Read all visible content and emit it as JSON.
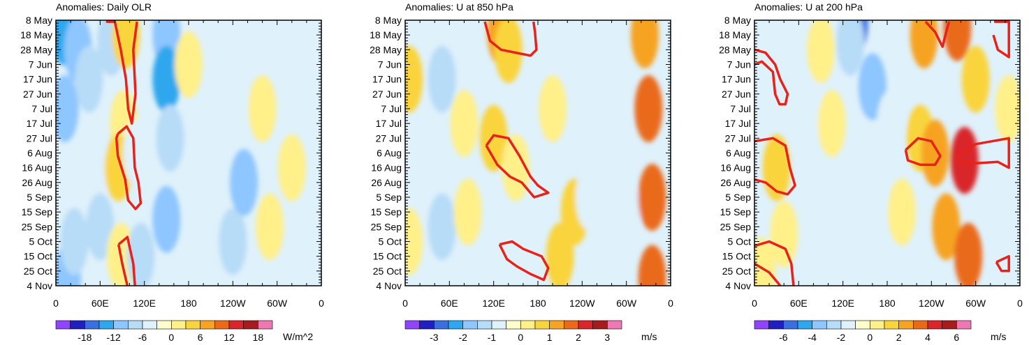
{
  "chart_data": [
    {
      "type": "heatmap",
      "title": "Anomalies: Daily OLR",
      "y_ticks": [
        "8 May",
        "18 May",
        "28 May",
        "7 Jun",
        "17 Jun",
        "27 Jun",
        "7 Jul",
        "17 Jul",
        "27 Jul",
        "6 Aug",
        "16 Aug",
        "26 Aug",
        "5 Sep",
        "15 Sep",
        "25 Sep",
        "5 Oct",
        "15 Oct",
        "25 Oct",
        "4 Nov"
      ],
      "x_ticks": [
        "0",
        "60E",
        "120E",
        "180",
        "120W",
        "60W",
        "0"
      ],
      "colorbar": {
        "unit": "W/m^2",
        "levels": [
          -21,
          -18,
          -15,
          -12,
          -9,
          -6,
          -3,
          0,
          3,
          6,
          9,
          12,
          15,
          18,
          21
        ],
        "labels": [
          {
            "text": "-18",
            "value": -18
          },
          {
            "text": "-12",
            "value": -12
          },
          {
            "text": "-6",
            "value": -6
          },
          {
            "text": "0",
            "value": 0
          },
          {
            "text": "6",
            "value": 6
          },
          {
            "text": "12",
            "value": 12
          },
          {
            "text": "18",
            "value": 18
          }
        ]
      },
      "patches": [
        {
          "lon": 12,
          "day": 8,
          "v": -12
        },
        {
          "lon": 12,
          "day": 60,
          "v": -9
        },
        {
          "lon": 15,
          "day": 175,
          "v": -9
        },
        {
          "lon": 30,
          "day": 20,
          "v": -9
        },
        {
          "lon": 30,
          "day": 120,
          "v": -3
        },
        {
          "lon": 45,
          "day": 40,
          "v": -6
        },
        {
          "lon": 55,
          "day": 100,
          "v": -3
        },
        {
          "lon": 60,
          "day": 140,
          "v": -6
        },
        {
          "lon": 75,
          "day": 15,
          "v": -6
        },
        {
          "lon": 95,
          "day": 10,
          "v": 6
        },
        {
          "lon": 92,
          "day": 70,
          "v": 3
        },
        {
          "lon": 85,
          "day": 100,
          "v": 6
        },
        {
          "lon": 88,
          "day": 160,
          "v": 3
        },
        {
          "lon": 110,
          "day": 90,
          "v": -3
        },
        {
          "lon": 115,
          "day": 160,
          "v": -6
        },
        {
          "lon": 150,
          "day": 10,
          "v": -9
        },
        {
          "lon": 150,
          "day": 40,
          "v": -12
        },
        {
          "lon": 155,
          "day": 80,
          "v": -6
        },
        {
          "lon": 150,
          "day": 135,
          "v": -9
        },
        {
          "lon": 180,
          "day": 30,
          "v": 3
        },
        {
          "lon": 190,
          "day": 120,
          "v": -3
        },
        {
          "lon": 215,
          "day": 80,
          "v": -3
        },
        {
          "lon": 240,
          "day": 60,
          "v": -3
        },
        {
          "lon": 240,
          "day": 150,
          "v": -6
        },
        {
          "lon": 255,
          "day": 110,
          "v": -9
        },
        {
          "lon": 280,
          "day": 60,
          "v": 3
        },
        {
          "lon": 290,
          "day": 140,
          "v": 3
        },
        {
          "lon": 320,
          "day": 100,
          "v": 3
        },
        {
          "lon": 340,
          "day": 20,
          "v": -3
        },
        {
          "lon": 340,
          "day": 150,
          "v": -3
        },
        {
          "lon": 25,
          "day": 150,
          "v": -6
        }
      ],
      "red_contours": [
        [
          [
            68,
            1
          ],
          [
            80,
            1
          ],
          [
            88,
            20
          ],
          [
            95,
            40
          ],
          [
            98,
            60
          ],
          [
            103,
            70
          ],
          [
            108,
            50
          ],
          [
            105,
            20
          ],
          [
            110,
            1
          ]
        ],
        [
          [
            84,
            77
          ],
          [
            96,
            72
          ],
          [
            105,
            80
          ],
          [
            107,
            100
          ],
          [
            112,
            110
          ],
          [
            115,
            124
          ],
          [
            108,
            128
          ],
          [
            98,
            122
          ],
          [
            94,
            108
          ],
          [
            84,
            92
          ],
          [
            82,
            80
          ],
          [
            84,
            77
          ]
        ],
        [
          [
            85,
            152
          ],
          [
            97,
            147
          ],
          [
            105,
            165
          ],
          [
            108,
            185
          ],
          [
            102,
            190
          ],
          [
            95,
            176
          ],
          [
            90,
            165
          ],
          [
            85,
            152
          ]
        ]
      ]
    },
    {
      "type": "heatmap",
      "title": "Anomalies: U at 850 hPa",
      "y_ticks": [
        "8 May",
        "18 May",
        "28 May",
        "7 Jun",
        "17 Jun",
        "27 Jun",
        "7 Jul",
        "17 Jul",
        "27 Jul",
        "6 Aug",
        "16 Aug",
        "26 Aug",
        "5 Sep",
        "15 Sep",
        "25 Sep",
        "5 Oct",
        "15 Oct",
        "25 Oct",
        "4 Nov"
      ],
      "x_ticks": [
        "0",
        "60E",
        "120E",
        "180",
        "120W",
        "60W",
        "0"
      ],
      "colorbar": {
        "unit": "m/s",
        "levels": [
          -3.5,
          -3,
          -2.5,
          -2,
          -1.5,
          -1,
          -0.5,
          0,
          0.5,
          1,
          1.5,
          2,
          2.5,
          3,
          3.5
        ],
        "labels": [
          {
            "text": "-3",
            "value": -3
          },
          {
            "text": "-2",
            "value": -2
          },
          {
            "text": "-1",
            "value": -1
          },
          {
            "text": "0",
            "value": 0
          },
          {
            "text": "1",
            "value": 1
          },
          {
            "text": "2",
            "value": 2
          },
          {
            "text": "3",
            "value": 3
          }
        ]
      },
      "patches": [
        {
          "lon": 5,
          "day": 40,
          "v": 1
        },
        {
          "lon": 5,
          "day": 150,
          "v": 0.5
        },
        {
          "lon": 30,
          "day": 100,
          "v": -0.5
        },
        {
          "lon": 50,
          "day": 40,
          "v": -1
        },
        {
          "lon": 50,
          "day": 140,
          "v": -1
        },
        {
          "lon": 80,
          "day": 70,
          "v": 0.5
        },
        {
          "lon": 85,
          "day": 130,
          "v": 0.5
        },
        {
          "lon": 130,
          "day": 8,
          "v": 1.5
        },
        {
          "lon": 140,
          "day": 20,
          "v": 1
        },
        {
          "lon": 120,
          "day": 80,
          "v": 1
        },
        {
          "lon": 150,
          "day": 100,
          "v": 0.5
        },
        {
          "lon": 200,
          "day": 60,
          "v": 0.5
        },
        {
          "lon": 230,
          "day": 130,
          "v": 1
        },
        {
          "lon": 210,
          "day": 160,
          "v": 1
        },
        {
          "lon": 250,
          "day": 30,
          "v": -0.5
        },
        {
          "lon": 250,
          "day": 120,
          "v": -0.5
        },
        {
          "lon": 285,
          "day": 70,
          "v": -0.5
        },
        {
          "lon": 300,
          "day": 130,
          "v": -0.5
        },
        {
          "lon": 325,
          "day": 10,
          "v": 1.5
        },
        {
          "lon": 330,
          "day": 60,
          "v": 2
        },
        {
          "lon": 335,
          "day": 120,
          "v": 2
        },
        {
          "lon": 335,
          "day": 175,
          "v": 2
        }
      ],
      "red_contours": [
        [
          [
            108,
            1
          ],
          [
            115,
            14
          ],
          [
            130,
            20
          ],
          [
            150,
            22
          ],
          [
            170,
            24
          ],
          [
            178,
            20
          ],
          [
            176,
            8
          ],
          [
            174,
            1
          ]
        ],
        [
          [
            110,
            85
          ],
          [
            120,
            78
          ],
          [
            140,
            80
          ],
          [
            155,
            92
          ],
          [
            170,
            106
          ],
          [
            180,
            112
          ],
          [
            194,
            117
          ],
          [
            175,
            120
          ],
          [
            158,
            110
          ],
          [
            142,
            106
          ],
          [
            125,
            98
          ],
          [
            110,
            85
          ]
        ],
        [
          [
            128,
            152
          ],
          [
            145,
            150
          ],
          [
            160,
            155
          ],
          [
            185,
            160
          ],
          [
            194,
            168
          ],
          [
            188,
            176
          ],
          [
            170,
            172
          ],
          [
            152,
            167
          ],
          [
            138,
            162
          ],
          [
            128,
            152
          ]
        ]
      ]
    },
    {
      "type": "heatmap",
      "title": "Anomalies: U at 200 hPa",
      "y_ticks": [
        "8 May",
        "18 May",
        "28 May",
        "7 Jun",
        "17 Jun",
        "27 Jun",
        "7 Jul",
        "17 Jul",
        "27 Jul",
        "6 Aug",
        "16 Aug",
        "26 Aug",
        "5 Sep",
        "15 Sep",
        "25 Sep",
        "5 Oct",
        "15 Oct",
        "25 Oct",
        "4 Nov"
      ],
      "x_ticks": [
        "0",
        "60E",
        "120E",
        "180",
        "120W",
        "60W",
        "0"
      ],
      "colorbar": {
        "unit": "m/s",
        "levels": [
          -7,
          -6,
          -5,
          -4,
          -3,
          -2,
          -1,
          0,
          1,
          2,
          3,
          4,
          5,
          6,
          7
        ],
        "labels": [
          {
            "text": "-6",
            "value": -6
          },
          {
            "text": "-4",
            "value": -4
          },
          {
            "text": "-2",
            "value": -2
          },
          {
            "text": "0",
            "value": 0
          },
          {
            "text": "2",
            "value": 2
          },
          {
            "text": "4",
            "value": 4
          },
          {
            "text": "6",
            "value": 6
          }
        ]
      },
      "patches": [
        {
          "lon": 20,
          "day": 30,
          "v": -1
        },
        {
          "lon": 30,
          "day": 100,
          "v": 2
        },
        {
          "lon": 40,
          "day": 145,
          "v": 1
        },
        {
          "lon": 10,
          "day": 170,
          "v": 1
        },
        {
          "lon": 70,
          "day": 60,
          "v": -1
        },
        {
          "lon": 90,
          "day": 20,
          "v": 1
        },
        {
          "lon": 105,
          "day": 70,
          "v": 1
        },
        {
          "lon": 135,
          "day": 2,
          "v": -5
        },
        {
          "lon": 130,
          "day": 15,
          "v": -2
        },
        {
          "lon": 160,
          "day": 45,
          "v": -3
        },
        {
          "lon": 160,
          "day": 120,
          "v": -1
        },
        {
          "lon": 185,
          "day": 70,
          "v": -1
        },
        {
          "lon": 200,
          "day": 130,
          "v": 1
        },
        {
          "lon": 230,
          "day": 10,
          "v": 3
        },
        {
          "lon": 225,
          "day": 80,
          "v": 2
        },
        {
          "lon": 245,
          "day": 90,
          "v": 3
        },
        {
          "lon": 260,
          "day": 140,
          "v": 3
        },
        {
          "lon": 275,
          "day": 5,
          "v": 4
        },
        {
          "lon": 285,
          "day": 95,
          "v": 5
        },
        {
          "lon": 290,
          "day": 160,
          "v": 4
        },
        {
          "lon": 300,
          "day": 40,
          "v": 2
        },
        {
          "lon": 330,
          "day": 130,
          "v": -1
        },
        {
          "lon": 345,
          "day": 60,
          "v": 1
        }
      ],
      "red_contours": [
        [
          [
            0,
            30
          ],
          [
            10,
            28
          ],
          [
            25,
            35
          ],
          [
            28,
            50
          ],
          [
            34,
            57
          ],
          [
            42,
            57
          ],
          [
            45,
            50
          ],
          [
            35,
            40
          ],
          [
            28,
            30
          ],
          [
            15,
            22
          ],
          [
            0,
            20
          ]
        ],
        [
          [
            0,
            82
          ],
          [
            25,
            80
          ],
          [
            42,
            85
          ],
          [
            48,
            100
          ],
          [
            55,
            112
          ],
          [
            45,
            118
          ],
          [
            30,
            116
          ],
          [
            15,
            110
          ],
          [
            0,
            108
          ]
        ],
        [
          [
            0,
            153
          ],
          [
            20,
            150
          ],
          [
            42,
            155
          ],
          [
            50,
            165
          ],
          [
            53,
            180
          ],
          [
            40,
            183
          ],
          [
            20,
            171
          ],
          [
            0,
            165
          ]
        ],
        [
          [
            232,
            1
          ],
          [
            245,
            8
          ],
          [
            255,
            18
          ],
          [
            262,
            4
          ],
          [
            264,
            1
          ]
        ],
        [
          [
            205,
            88
          ],
          [
            222,
            80
          ],
          [
            240,
            82
          ],
          [
            252,
            92
          ],
          [
            245,
            98
          ],
          [
            225,
            98
          ],
          [
            208,
            95
          ],
          [
            205,
            88
          ]
        ],
        [
          [
            275,
            92
          ],
          [
            300,
            84
          ],
          [
            345,
            80
          ],
          [
            345,
            100
          ],
          [
            330,
            96
          ],
          [
            300,
            97
          ],
          [
            278,
            96
          ],
          [
            275,
            92
          ]
        ],
        [
          [
            325,
            1
          ],
          [
            345,
            1
          ],
          [
            345,
            25
          ],
          [
            330,
            20
          ],
          [
            324,
            10
          ]
        ],
        [
          [
            328,
            164
          ],
          [
            345,
            160
          ],
          [
            345,
            170
          ],
          [
            335,
            170
          ],
          [
            328,
            164
          ]
        ]
      ]
    }
  ]
}
